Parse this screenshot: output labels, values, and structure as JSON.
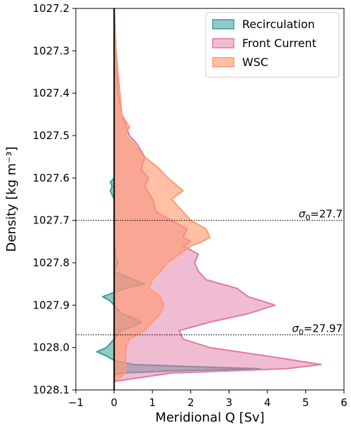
{
  "chart_data": {
    "type": "area",
    "xlabel": "Meridional Q [Sv]",
    "ylabel": "Density [kg m⁻³]",
    "xlim": [
      -1,
      6
    ],
    "ylim": [
      1028.1,
      1027.2
    ],
    "y_inverted": true,
    "xticks": [
      -1,
      0,
      1,
      2,
      3,
      4,
      5,
      6
    ],
    "yticks": [
      1027.2,
      1027.3,
      1027.4,
      1027.5,
      1027.6,
      1027.7,
      1027.8,
      1027.9,
      1028.0,
      1028.1
    ],
    "legend_position": "top-right",
    "grid": false,
    "series": [
      {
        "name": "Recirculation",
        "color": "#3a9e9a",
        "y": [
          1027.2,
          1027.3,
          1027.4,
          1027.5,
          1027.6,
          1027.61,
          1027.62,
          1027.63,
          1027.65,
          1027.7,
          1027.75,
          1027.79,
          1027.8,
          1027.82,
          1027.84,
          1027.85,
          1027.86,
          1027.87,
          1027.88,
          1027.89,
          1027.9,
          1027.92,
          1027.93,
          1027.94,
          1027.95,
          1027.96,
          1027.98,
          1028.0,
          1028.01,
          1028.02,
          1028.03,
          1028.04,
          1028.045,
          1028.05,
          1028.055,
          1028.06,
          1028.065,
          1028.08
        ],
        "x": [
          0.0,
          0.0,
          0.0,
          0.0,
          0.0,
          -0.1,
          -0.05,
          -0.1,
          0.0,
          0.0,
          0.0,
          0.05,
          0.1,
          0.0,
          0.5,
          0.8,
          0.3,
          0.0,
          -0.3,
          -0.1,
          0.0,
          0.2,
          0.5,
          0.7,
          0.5,
          0.2,
          0.0,
          -0.2,
          -0.45,
          -0.2,
          0.0,
          0.5,
          2.0,
          3.8,
          1.5,
          0.2,
          0.0,
          0.0
        ]
      },
      {
        "name": "Front Current",
        "color": "#e07aa5",
        "y": [
          1027.2,
          1027.4,
          1027.45,
          1027.5,
          1027.52,
          1027.55,
          1027.58,
          1027.6,
          1027.62,
          1027.65,
          1027.68,
          1027.7,
          1027.72,
          1027.74,
          1027.75,
          1027.76,
          1027.78,
          1027.8,
          1027.82,
          1027.84,
          1027.86,
          1027.88,
          1027.9,
          1027.92,
          1027.94,
          1027.96,
          1027.98,
          1028.0,
          1028.02,
          1028.04,
          1028.05,
          1028.06,
          1028.08
        ],
        "x": [
          0.0,
          0.1,
          0.2,
          0.4,
          0.6,
          0.8,
          0.7,
          0.9,
          0.8,
          1.0,
          1.1,
          1.5,
          1.9,
          1.8,
          2.0,
          1.8,
          2.2,
          2.1,
          2.2,
          2.4,
          3.2,
          3.5,
          4.2,
          3.5,
          2.5,
          1.7,
          1.8,
          2.5,
          4.0,
          5.4,
          4.5,
          1.5,
          0.0
        ]
      },
      {
        "name": "WSC",
        "color": "#ff9a70",
        "y": [
          1027.2,
          1027.3,
          1027.35,
          1027.4,
          1027.45,
          1027.48,
          1027.5,
          1027.52,
          1027.55,
          1027.58,
          1027.6,
          1027.63,
          1027.65,
          1027.68,
          1027.7,
          1027.72,
          1027.74,
          1027.75,
          1027.76,
          1027.78,
          1027.8,
          1027.82,
          1027.84,
          1027.86,
          1027.88,
          1027.9,
          1027.92,
          1027.94,
          1027.96,
          1027.98,
          1028.0,
          1028.02,
          1028.04,
          1028.06,
          1028.08
        ],
        "x": [
          0.0,
          0.05,
          0.1,
          0.15,
          0.2,
          0.4,
          0.3,
          0.5,
          0.8,
          1.2,
          1.4,
          1.8,
          1.5,
          1.8,
          2.0,
          2.4,
          2.5,
          2.3,
          2.0,
          1.7,
          1.4,
          1.2,
          1.0,
          0.9,
          1.2,
          1.3,
          1.2,
          1.0,
          0.8,
          0.4,
          0.3,
          0.3,
          0.3,
          0.3,
          0.0
        ]
      }
    ],
    "annotations": [
      {
        "type": "hline",
        "y": 1027.7,
        "style": "dotted",
        "label_base": "σ",
        "label_sub": "0",
        "label_rest": "=27.7"
      },
      {
        "type": "hline",
        "y": 1027.97,
        "style": "dotted",
        "label_base": "σ",
        "label_sub": "0",
        "label_rest": "=27.97"
      }
    ]
  }
}
